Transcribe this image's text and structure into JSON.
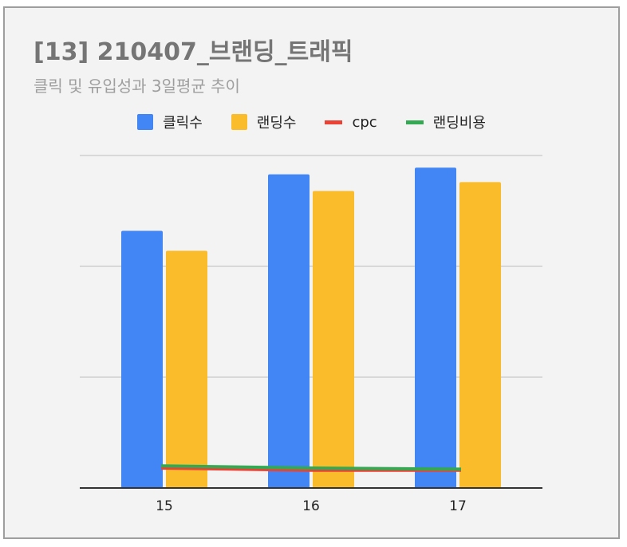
{
  "title": "[13] 210407_브랜딩_트래픽",
  "subtitle": "클릭 및 유입성과 3일평균 추이",
  "colors": {
    "clicks": "#4285f4",
    "landings": "#fbbc2c",
    "cpc": "#ea4335",
    "landing_cost": "#34a853",
    "gridline": "#cfcfcf",
    "axis": "#333333"
  },
  "chart_data": {
    "type": "bar",
    "categories": [
      "15",
      "16",
      "17"
    ],
    "ylim": [
      0,
      3000
    ],
    "grid": true,
    "legend_position": "top",
    "series": [
      {
        "name": "클릭수",
        "type": "bar",
        "color": "#4285f4",
        "values": [
          2320,
          2830,
          2890
        ]
      },
      {
        "name": "랜딩수",
        "type": "bar",
        "color": "#fbbc2c",
        "values": [
          2140,
          2680,
          2760
        ]
      },
      {
        "name": "cpc",
        "type": "line",
        "color": "#ea4335",
        "values": [
          180,
          160,
          160
        ]
      },
      {
        "name": "랜딩비용",
        "type": "line",
        "color": "#34a853",
        "values": [
          200,
          180,
          170
        ]
      }
    ]
  }
}
